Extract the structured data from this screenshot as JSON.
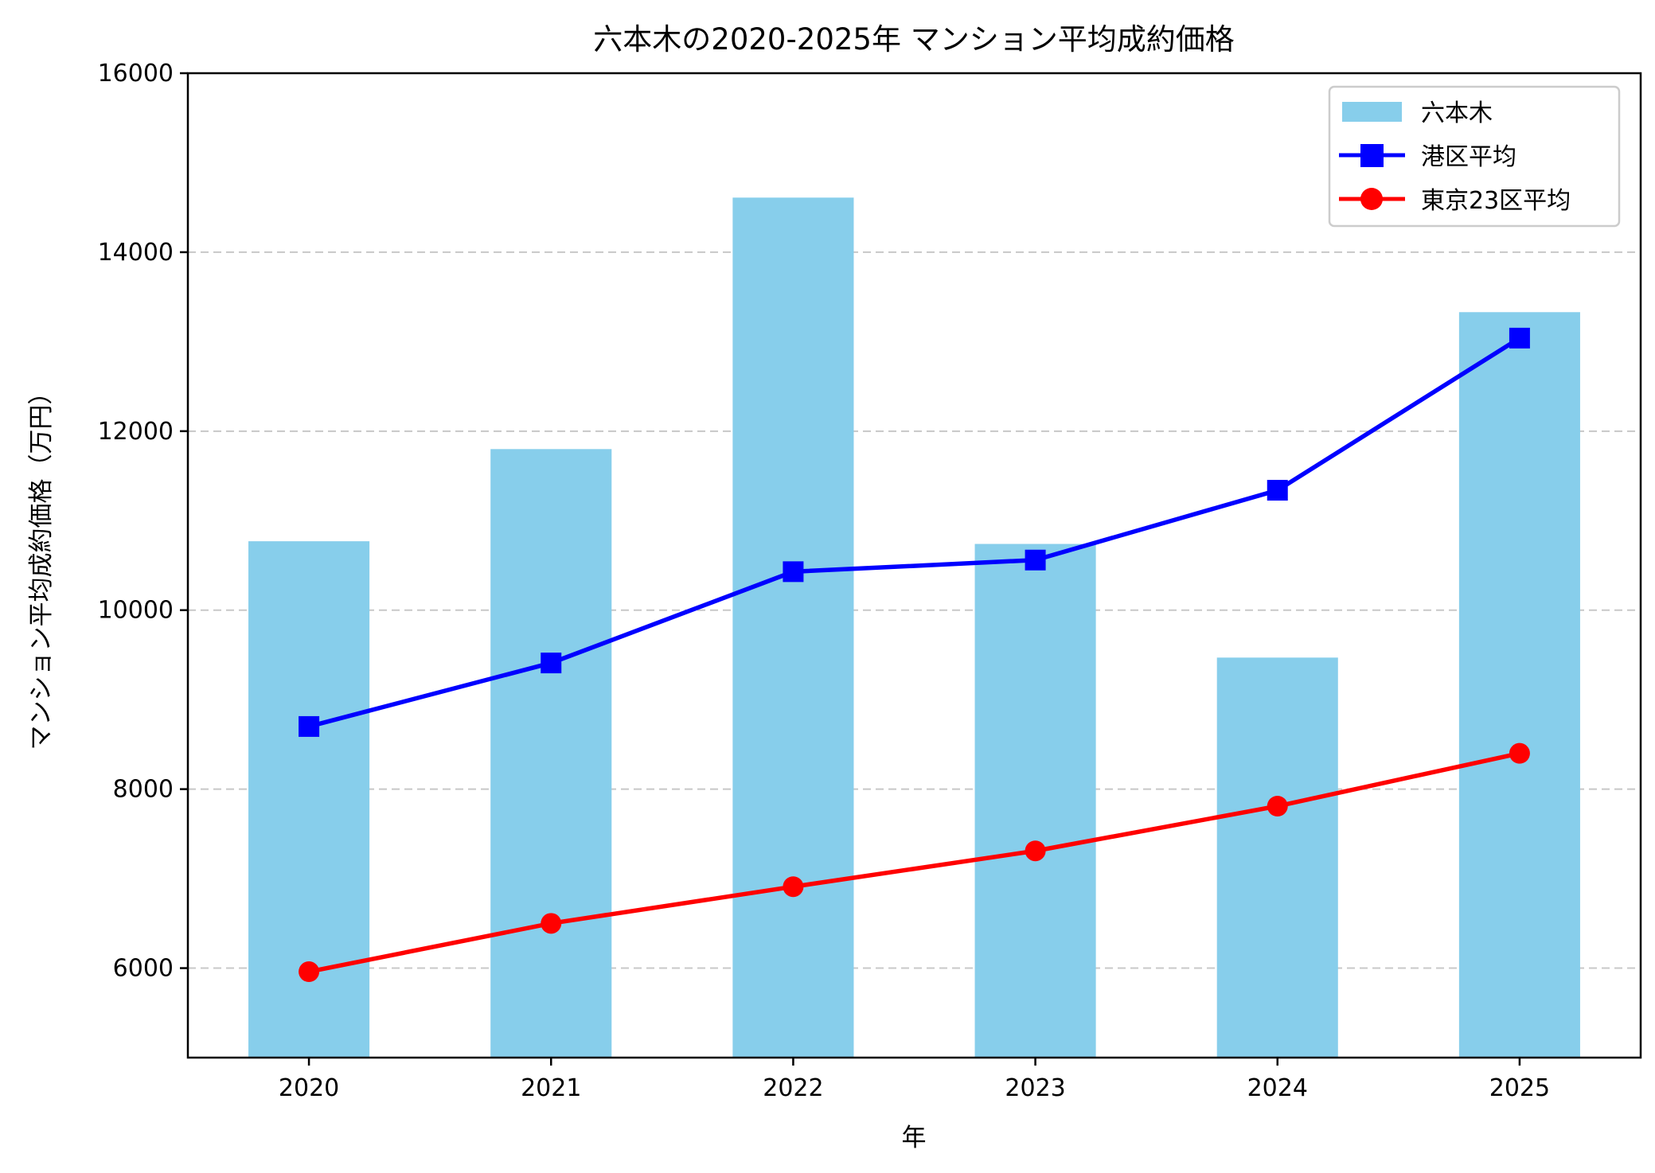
{
  "chart_data": {
    "type": "bar+line",
    "title": "六本木の2020-2025年 マンション平均成約価格",
    "xlabel": "年",
    "ylabel": "マンション平均成約価格（万円）",
    "categories": [
      "2020",
      "2021",
      "2022",
      "2023",
      "2024",
      "2025"
    ],
    "ylim": [
      5000,
      16000
    ],
    "yticks": [
      6000,
      8000,
      10000,
      12000,
      14000,
      16000
    ],
    "grid": "y-dashed",
    "legend_position": "top-right",
    "series": [
      {
        "name": "六本木",
        "type": "bar",
        "color": "#87CEEB",
        "values": [
          10770,
          11800,
          14610,
          10740,
          9470,
          13330
        ]
      },
      {
        "name": "港区平均",
        "type": "line",
        "marker": "square",
        "color": "#0000FF",
        "values": [
          8700,
          9410,
          10430,
          10560,
          11340,
          13040
        ]
      },
      {
        "name": "東京23区平均",
        "type": "line",
        "marker": "circle",
        "color": "#FF0000",
        "values": [
          5960,
          6500,
          6910,
          7310,
          7810,
          8400
        ]
      }
    ]
  }
}
